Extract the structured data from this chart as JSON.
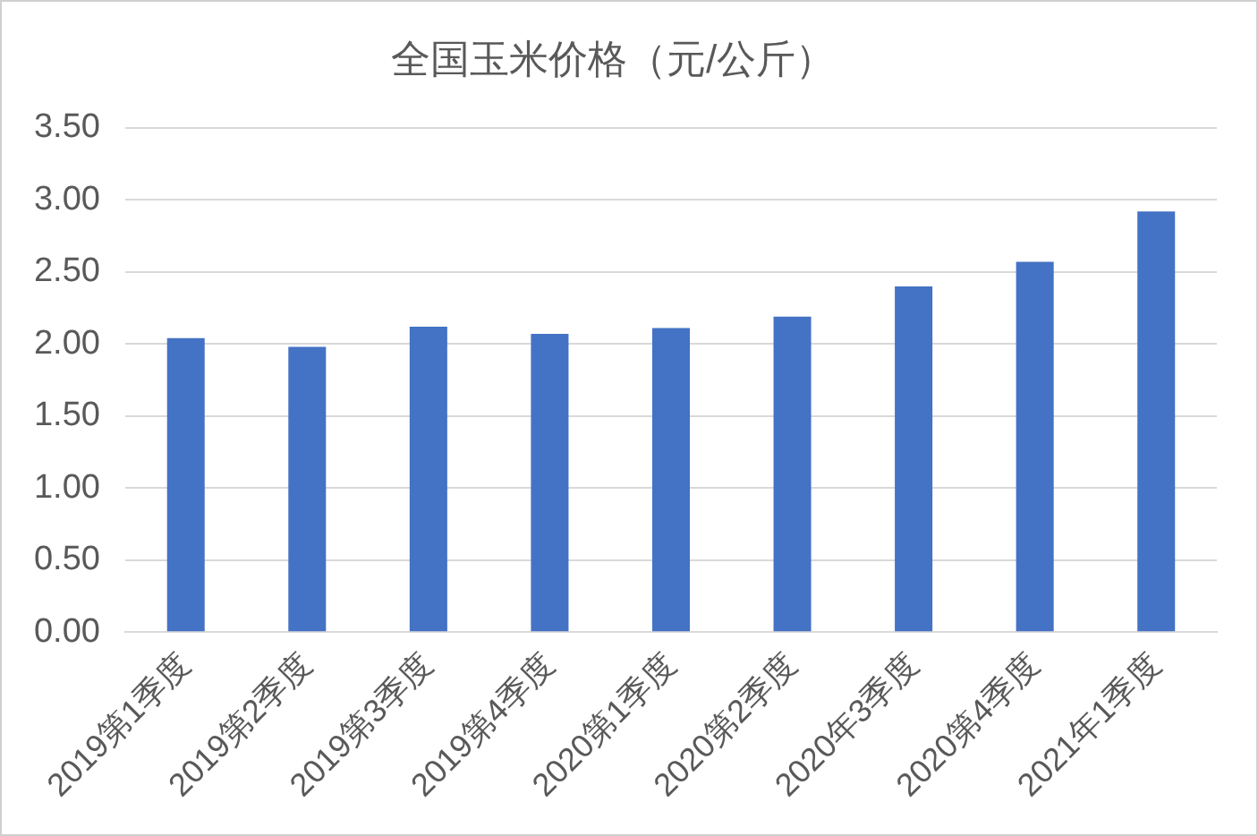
{
  "chart_data": {
    "type": "bar",
    "title": "全国玉米价格（元/公斤）",
    "categories": [
      "2019第1季度",
      "2019第2季度",
      "2019第3季度",
      "2019第4季度",
      "2020第1季度",
      "2020第2季度",
      "2020年3季度",
      "2020第4季度",
      "2021年1季度"
    ],
    "values": [
      2.04,
      1.98,
      2.12,
      2.07,
      2.11,
      2.19,
      2.4,
      2.57,
      2.92
    ],
    "color": "#4472c4",
    "ylim": [
      0,
      3.5
    ],
    "yticks": [
      {
        "value": 0,
        "label": "0.00"
      },
      {
        "value": 0.5,
        "label": "0.50"
      },
      {
        "value": 1,
        "label": "1.00"
      },
      {
        "value": 1.5,
        "label": "1.50"
      },
      {
        "value": 2,
        "label": "2.00"
      },
      {
        "value": 2.5,
        "label": "2.50"
      },
      {
        "value": 3,
        "label": "3.00"
      },
      {
        "value": 3.5,
        "label": "3.50"
      }
    ],
    "grid": "y"
  }
}
